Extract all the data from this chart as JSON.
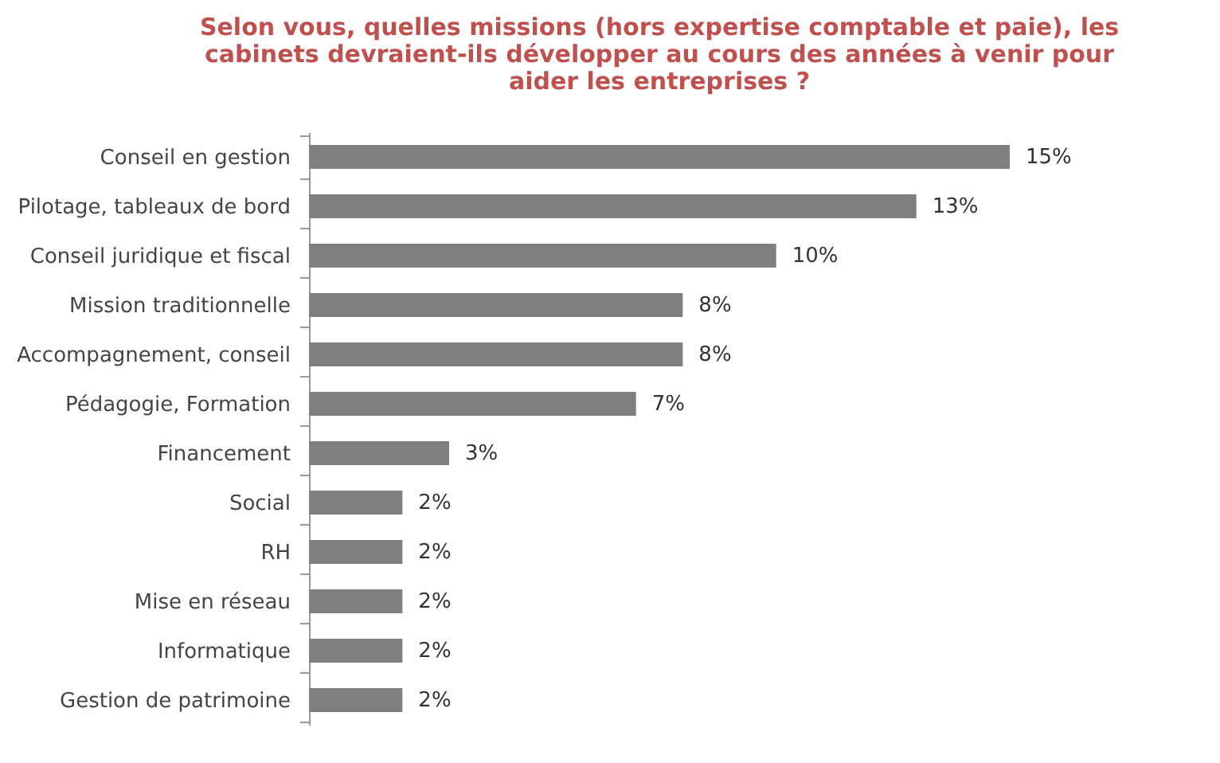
{
  "chart_data": {
    "type": "bar",
    "orientation": "horizontal",
    "title": "Selon vous, quelles missions (hors expertise comptable et paie), les cabinets devraient-ils développer au cours des années à venir pour aider les entreprises ?",
    "categories": [
      "Conseil en gestion",
      "Pilotage, tableaux de bord",
      "Conseil juridique et fiscal",
      "Mission traditionnelle",
      "Accompagnement, conseil",
      "Pédagogie, Formation",
      "Financement",
      "Social",
      "RH",
      "Mise en réseau",
      "Informatique",
      "Gestion de patrimoine"
    ],
    "values": [
      15,
      13,
      10,
      8,
      8,
      7,
      3,
      2,
      2,
      2,
      2,
      2
    ],
    "value_labels": [
      "15%",
      "13%",
      "10%",
      "8%",
      "8%",
      "7%",
      "3%",
      "2%",
      "2%",
      "2%",
      "2%",
      "2%"
    ],
    "color": "#7f7f7f",
    "grid": false
  }
}
